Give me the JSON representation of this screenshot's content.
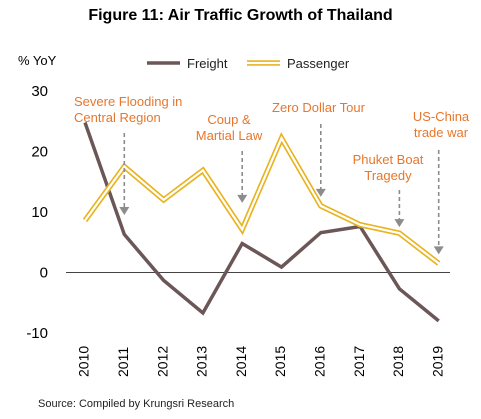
{
  "chart_data": {
    "type": "line",
    "title": "Figure 11:  Air Traffic Growth of Thailand",
    "ylabel": "% YoY",
    "xlabel": "",
    "ylim": [
      -10,
      30
    ],
    "yticks": [
      -10,
      0,
      10,
      20,
      30
    ],
    "x": [
      "2010",
      "2011",
      "2012",
      "2013",
      "2014",
      "2015",
      "2016",
      "2017",
      "2018",
      "2019"
    ],
    "series": [
      {
        "name": "Freight",
        "color": "#6B5757",
        "values": [
          24.8,
          6.3,
          -1.3,
          -6.7,
          4.8,
          0.9,
          6.6,
          7.6,
          -2.7,
          -8.0
        ]
      },
      {
        "name": "Passenger",
        "color": "#F2C12E",
        "values": [
          8.6,
          17.5,
          12.0,
          16.9,
          7.1,
          22.2,
          11.0,
          7.9,
          6.5,
          1.5
        ]
      }
    ],
    "legend_position": "top",
    "grid": false,
    "annotations": [
      {
        "lines": [
          "Severe Flooding in",
          "Central Region"
        ],
        "x": "2011",
        "y": 9.5
      },
      {
        "lines": [
          "Coup &",
          "Martial Law"
        ],
        "x": "2014",
        "y": 11.5
      },
      {
        "lines": [
          "Zero Dollar Tour"
        ],
        "x": "2016",
        "y": 12.5
      },
      {
        "lines": [
          "Phuket Boat",
          "Tragedy"
        ],
        "x": "2018",
        "y": 7.5
      },
      {
        "lines": [
          "US-China",
          "trade war"
        ],
        "x": "2019",
        "y": 3
      }
    ],
    "annotation_color": "#E8762B"
  },
  "source": "Source: Compiled by Krungsri Research"
}
